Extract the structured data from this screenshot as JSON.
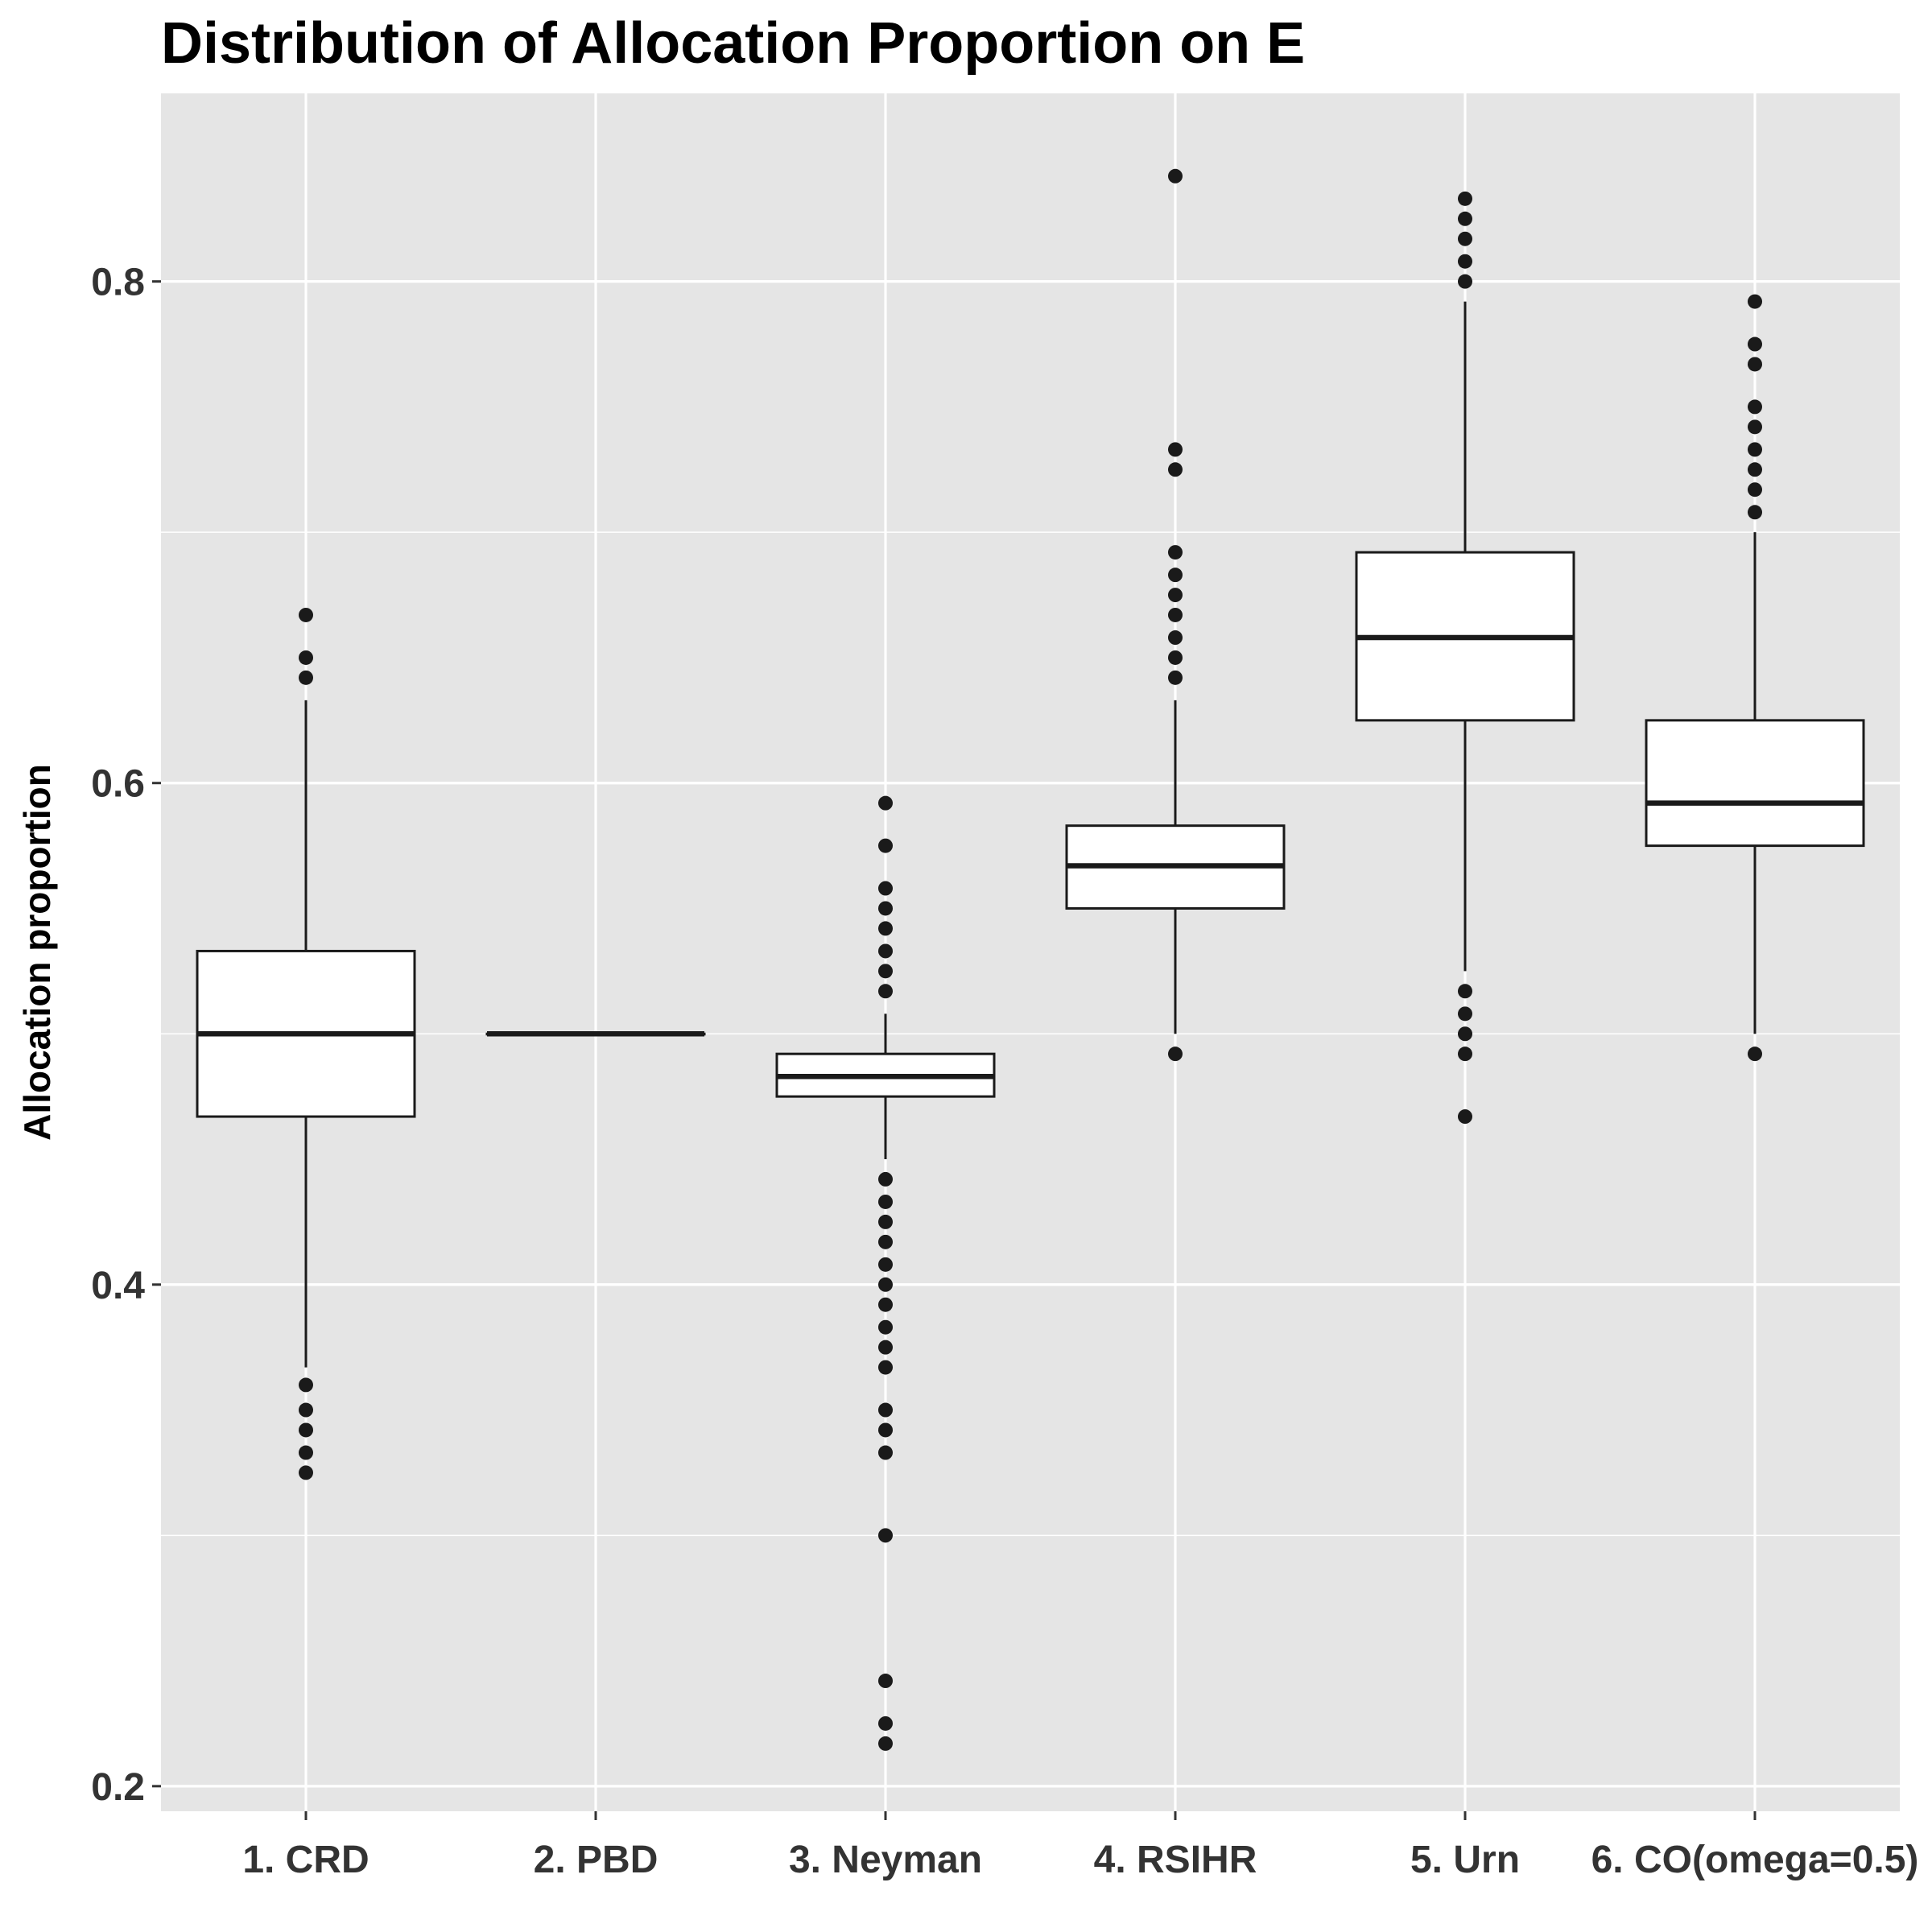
{
  "chart_data": {
    "type": "boxplot",
    "title": "Distribution of Allocation Proportion on E",
    "xlabel": "",
    "ylabel": "Allocation proportion",
    "ylim": [
      0.19,
      0.875
    ],
    "yticks": [
      0.2,
      0.4,
      0.6,
      0.8
    ],
    "ytick_labels": [
      "0.2",
      "0.4",
      "0.6",
      "0.8"
    ],
    "grid": true,
    "legend": "none",
    "categories": [
      "1. CRD",
      "2. PBD",
      "3. Neyman",
      "4. RSIHR",
      "5. Urn",
      "6. CO(omega=0.5)"
    ],
    "boxes": [
      {
        "q1": 0.467,
        "median": 0.5,
        "q3": 0.533,
        "whisker_low": 0.367,
        "whisker_high": 0.633,
        "outliers": [
          0.667,
          0.65,
          0.642,
          0.36,
          0.35,
          0.342,
          0.333,
          0.325
        ]
      },
      {
        "q1": 0.5,
        "median": 0.5,
        "q3": 0.5,
        "whisker_low": 0.5,
        "whisker_high": 0.5,
        "outliers": []
      },
      {
        "q1": 0.475,
        "median": 0.483,
        "q3": 0.492,
        "whisker_low": 0.45,
        "whisker_high": 0.508,
        "outliers": [
          0.592,
          0.575,
          0.558,
          0.55,
          0.542,
          0.533,
          0.525,
          0.517,
          0.442,
          0.433,
          0.425,
          0.417,
          0.408,
          0.4,
          0.392,
          0.383,
          0.375,
          0.367,
          0.35,
          0.342,
          0.333,
          0.3,
          0.242,
          0.225,
          0.217
        ]
      },
      {
        "q1": 0.55,
        "median": 0.567,
        "q3": 0.583,
        "whisker_low": 0.5,
        "whisker_high": 0.633,
        "outliers": [
          0.842,
          0.733,
          0.725,
          0.692,
          0.683,
          0.675,
          0.667,
          0.658,
          0.65,
          0.642,
          0.492
        ]
      },
      {
        "q1": 0.625,
        "median": 0.658,
        "q3": 0.692,
        "whisker_low": 0.525,
        "whisker_high": 0.792,
        "outliers": [
          0.833,
          0.825,
          0.817,
          0.808,
          0.8,
          0.517,
          0.508,
          0.5,
          0.492,
          0.467
        ]
      },
      {
        "q1": 0.575,
        "median": 0.592,
        "q3": 0.625,
        "whisker_low": 0.5,
        "whisker_high": 0.7,
        "outliers": [
          0.792,
          0.775,
          0.767,
          0.75,
          0.742,
          0.733,
          0.725,
          0.717,
          0.708,
          0.492
        ]
      }
    ]
  }
}
